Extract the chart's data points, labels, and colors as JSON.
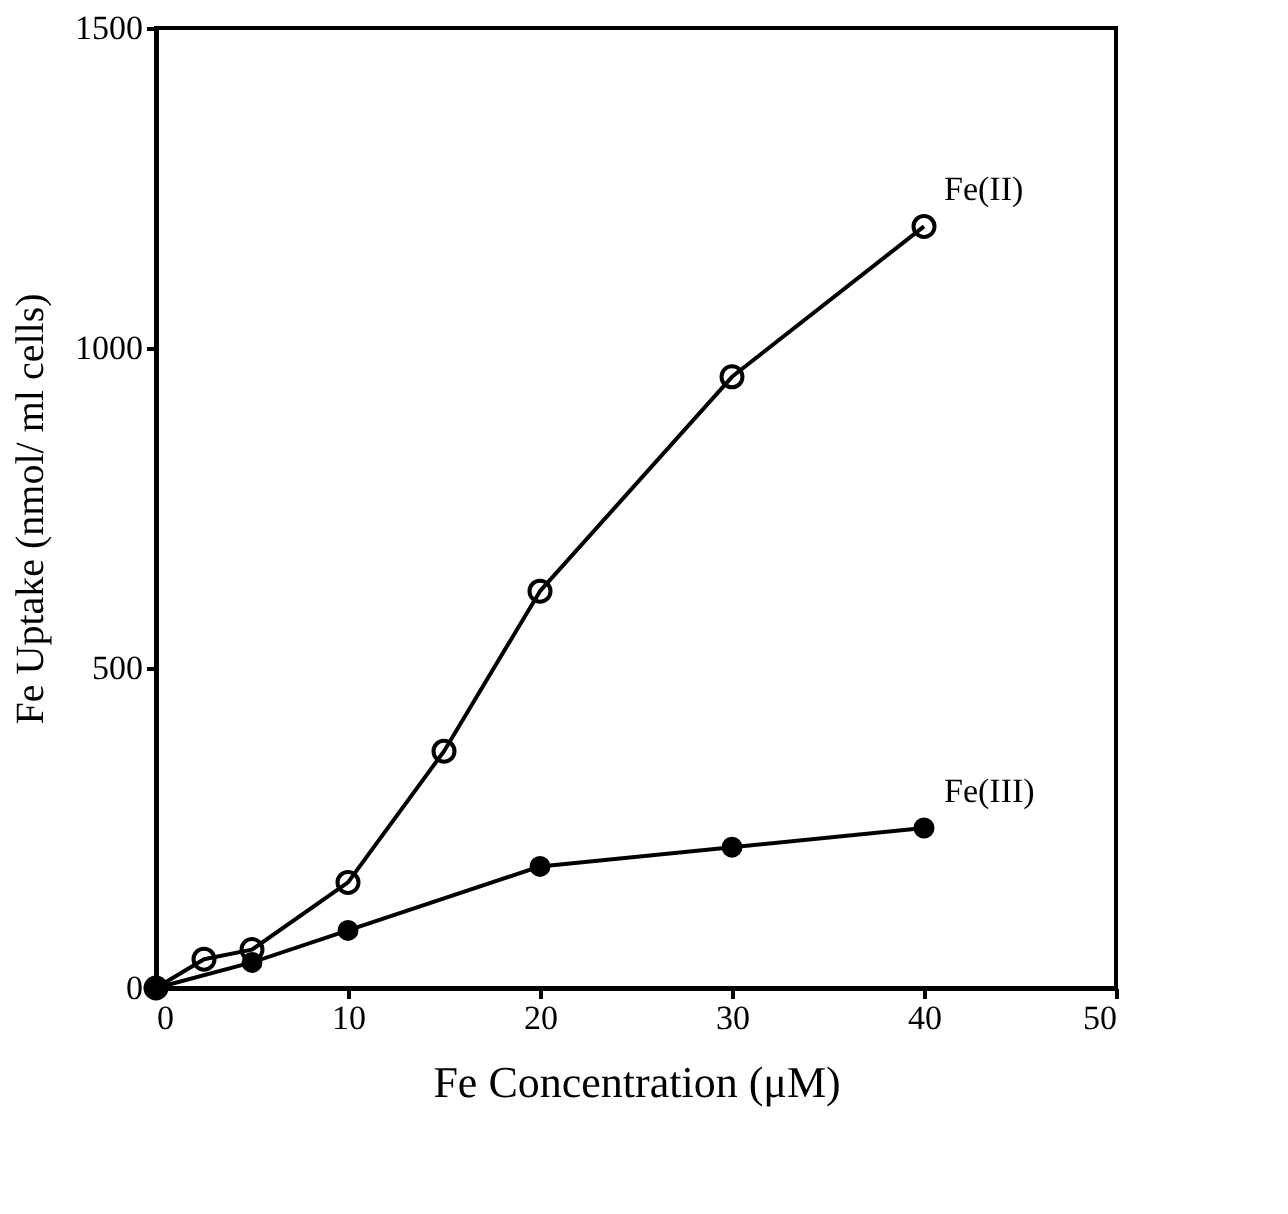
{
  "chart_data": {
    "type": "line",
    "xlabel": "Fe Concentration (μM)",
    "ylabel": "Fe Uptake (nmol/ ml cells)",
    "xlim": [
      0,
      50
    ],
    "xticks": [
      0,
      10,
      20,
      30,
      40,
      50
    ],
    "ylim": [
      0,
      1500
    ],
    "yticks": [
      0,
      500,
      1000,
      1500
    ],
    "grid": false,
    "legend": false,
    "marker": "circle",
    "line_style": "solid",
    "series": [
      {
        "name": "Fe(II)",
        "color": "#000000",
        "x": [
          0,
          2.5,
          5,
          10,
          15,
          20,
          30,
          40
        ],
        "values": [
          0,
          45,
          60,
          165,
          370,
          620,
          955,
          1190
        ]
      },
      {
        "name": "Fe(III)",
        "color": "#000000",
        "x": [
          0,
          5,
          10,
          20,
          30,
          40
        ],
        "values": [
          0,
          40,
          90,
          190,
          220,
          250
        ]
      }
    ]
  }
}
